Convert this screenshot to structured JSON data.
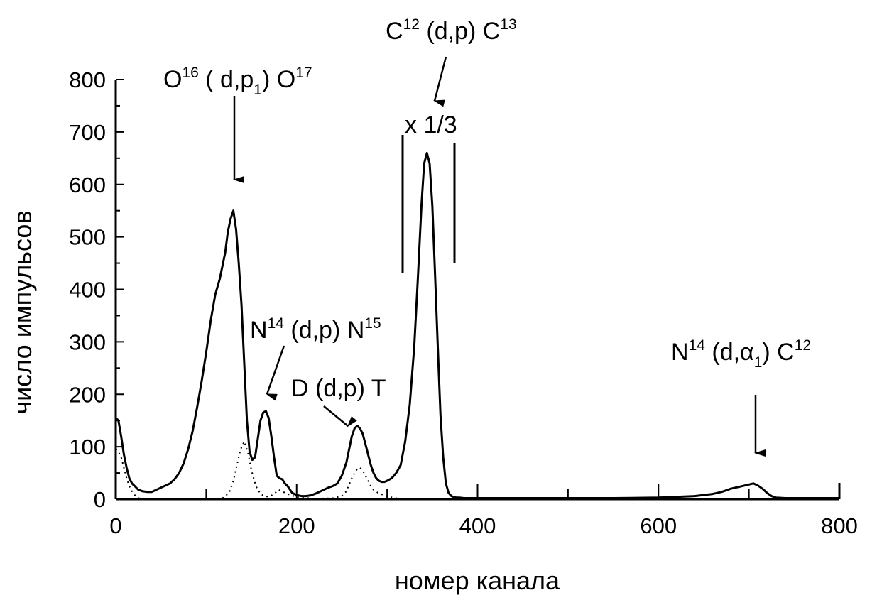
{
  "chart_data": {
    "type": "line",
    "title": "",
    "xlabel": "номер канала",
    "ylabel": "число импульсов",
    "xlim": [
      0,
      800
    ],
    "ylim": [
      0,
      800
    ],
    "x_ticks": [
      0,
      200,
      400,
      600,
      800
    ],
    "y_ticks": [
      0,
      100,
      200,
      300,
      400,
      500,
      600,
      700,
      800
    ],
    "grid": false,
    "series": [
      {
        "style": "solid",
        "x": [
          0,
          3,
          6,
          9,
          12,
          15,
          18,
          21,
          25,
          30,
          35,
          40,
          45,
          50,
          55,
          60,
          65,
          70,
          75,
          80,
          85,
          90,
          95,
          100,
          105,
          110,
          115,
          118,
          121,
          124,
          127,
          130,
          133,
          136,
          139,
          142,
          145,
          148,
          151,
          154,
          157,
          160,
          163,
          166,
          169,
          172,
          175,
          178,
          181,
          184,
          187,
          190,
          195,
          200,
          205,
          210,
          215,
          220,
          225,
          230,
          235,
          240,
          245,
          250,
          255,
          258,
          261,
          264,
          267,
          270,
          273,
          276,
          279,
          282,
          285,
          288,
          291,
          294,
          297,
          300,
          305,
          310,
          315,
          320,
          325,
          330,
          334,
          338,
          341,
          344,
          347,
          350,
          353,
          356,
          359,
          362,
          365,
          368,
          371,
          374,
          377,
          380,
          385,
          390,
          400,
          450,
          500,
          550,
          600,
          640,
          660,
          670,
          680,
          690,
          700,
          705,
          710,
          715,
          720,
          725,
          730,
          740,
          760,
          800
        ],
        "y": [
          155,
          150,
          120,
          85,
          60,
          40,
          30,
          25,
          18,
          15,
          14,
          14,
          18,
          22,
          26,
          30,
          38,
          50,
          68,
          95,
          130,
          175,
          225,
          280,
          340,
          390,
          420,
          445,
          470,
          510,
          535,
          550,
          515,
          450,
          370,
          260,
          150,
          90,
          75,
          80,
          115,
          150,
          165,
          168,
          155,
          120,
          80,
          45,
          40,
          38,
          30,
          25,
          12,
          8,
          6,
          6,
          7,
          10,
          14,
          18,
          22,
          25,
          30,
          45,
          70,
          95,
          120,
          135,
          140,
          135,
          125,
          105,
          85,
          65,
          50,
          40,
          35,
          33,
          33,
          35,
          40,
          50,
          65,
          110,
          180,
          290,
          420,
          560,
          640,
          660,
          640,
          560,
          430,
          290,
          160,
          80,
          30,
          12,
          6,
          4,
          3,
          3,
          2,
          2,
          2,
          2,
          2,
          2,
          3,
          6,
          10,
          14,
          20,
          24,
          28,
          30,
          26,
          20,
          12,
          6,
          3,
          2,
          2,
          2
        ]
      },
      {
        "style": "dotted",
        "x": [
          0,
          3,
          6,
          9,
          12,
          15,
          18,
          21,
          24,
          27,
          30,
          40,
          60,
          80,
          100,
          110,
          120,
          126,
          130,
          134,
          138,
          142,
          146,
          150,
          155,
          160,
          165,
          170,
          175,
          180,
          190,
          200,
          220,
          240,
          250,
          255,
          258,
          261,
          264,
          267,
          270,
          273,
          276,
          279,
          282,
          285,
          290,
          300,
          310,
          320,
          330
        ],
        "y": [
          95,
          90,
          80,
          60,
          40,
          25,
          15,
          8,
          3,
          1,
          0,
          0,
          0,
          0,
          0,
          0,
          3,
          15,
          35,
          65,
          95,
          110,
          90,
          55,
          25,
          10,
          5,
          5,
          10,
          18,
          10,
          4,
          1,
          2,
          6,
          15,
          28,
          40,
          50,
          58,
          60,
          55,
          45,
          35,
          25,
          18,
          12,
          5,
          2,
          0,
          0
        ]
      }
    ],
    "annotations": [
      {
        "base": "O",
        "sup1": "16",
        "mid": " ( d,p",
        "sub": "1",
        "close": ") O",
        "sup2": "17"
      },
      {
        "base": "C",
        "sup1": "12",
        "mid": " (d,p) C",
        "sup2": "13"
      },
      {
        "text": "x 1/3"
      },
      {
        "base": "N",
        "sup1": "14",
        "mid": " (d,p) N",
        "sup2": "15"
      },
      {
        "text": "D (d,p) T"
      },
      {
        "base": "N",
        "sup1": "14",
        "mid": " (d,α",
        "sub": "1",
        "close": ") C",
        "sup2": "12"
      }
    ]
  }
}
